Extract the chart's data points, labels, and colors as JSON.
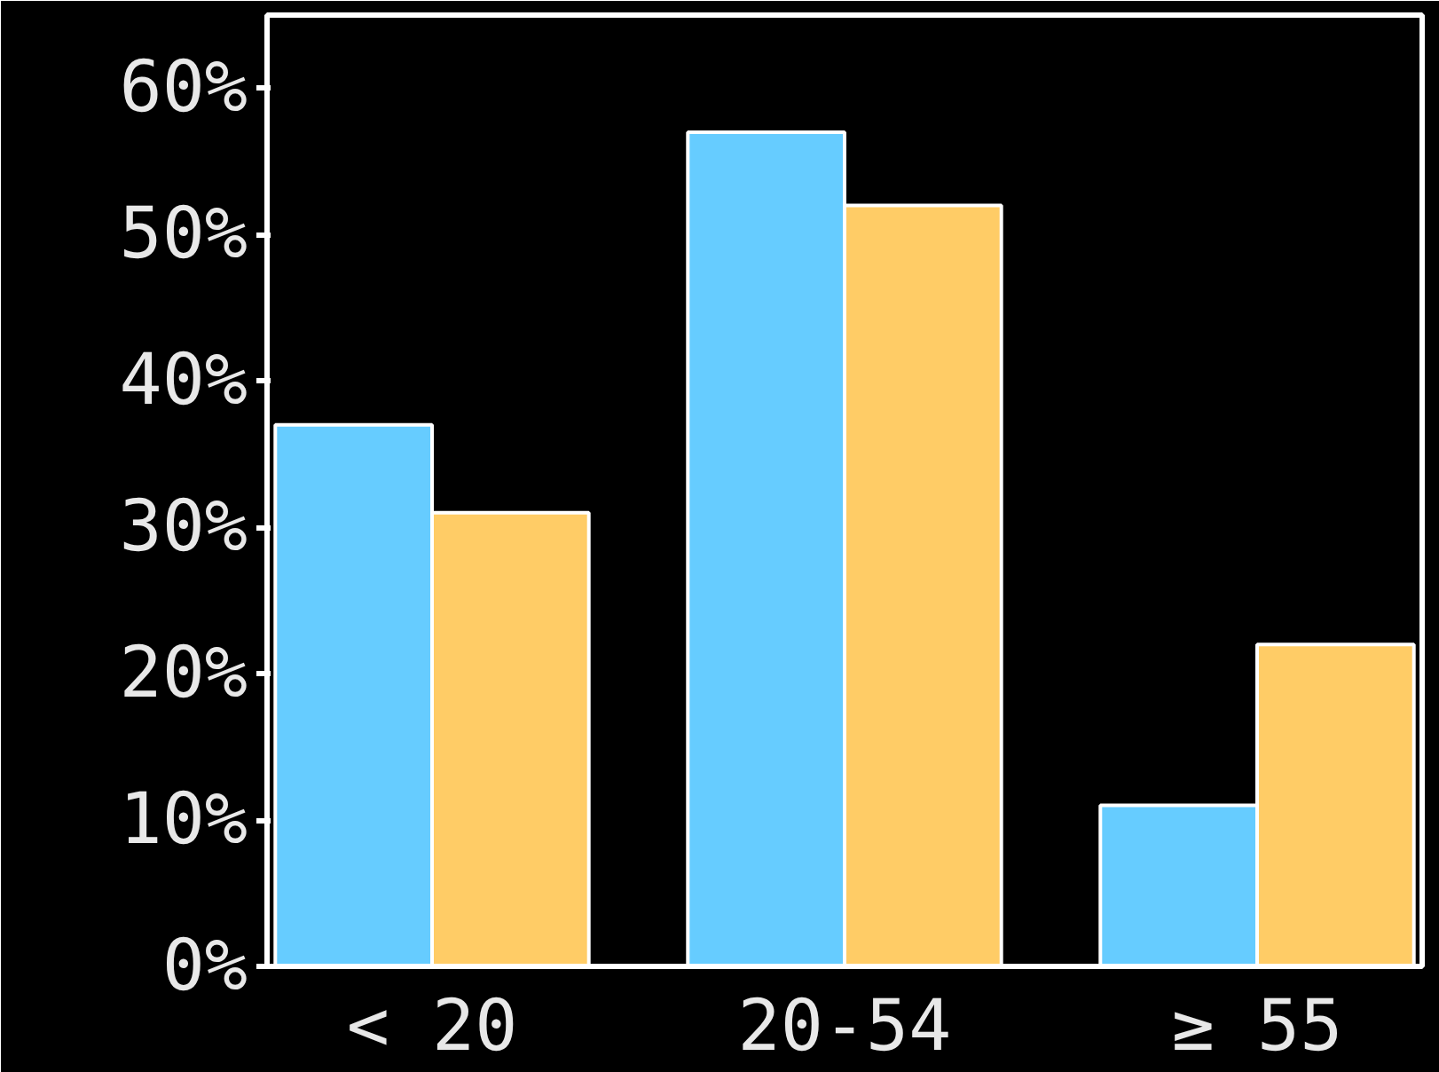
{
  "chart_data": {
    "type": "bar",
    "categories": [
      "< 20",
      "20-54",
      "≥ 55"
    ],
    "series": [
      {
        "color": "#66ccff",
        "values": [
          37,
          57,
          11
        ]
      },
      {
        "color": "#ffcc66",
        "values": [
          31,
          52,
          22
        ]
      }
    ],
    "ylim": [
      0,
      65
    ],
    "yticks": [
      {
        "value": 0,
        "label": "0%"
      },
      {
        "value": 10,
        "label": "10%"
      },
      {
        "value": 20,
        "label": "20%"
      },
      {
        "value": 30,
        "label": "30%"
      },
      {
        "value": 40,
        "label": "40%"
      },
      {
        "value": 50,
        "label": "50%"
      },
      {
        "value": 60,
        "label": "60%"
      }
    ]
  }
}
